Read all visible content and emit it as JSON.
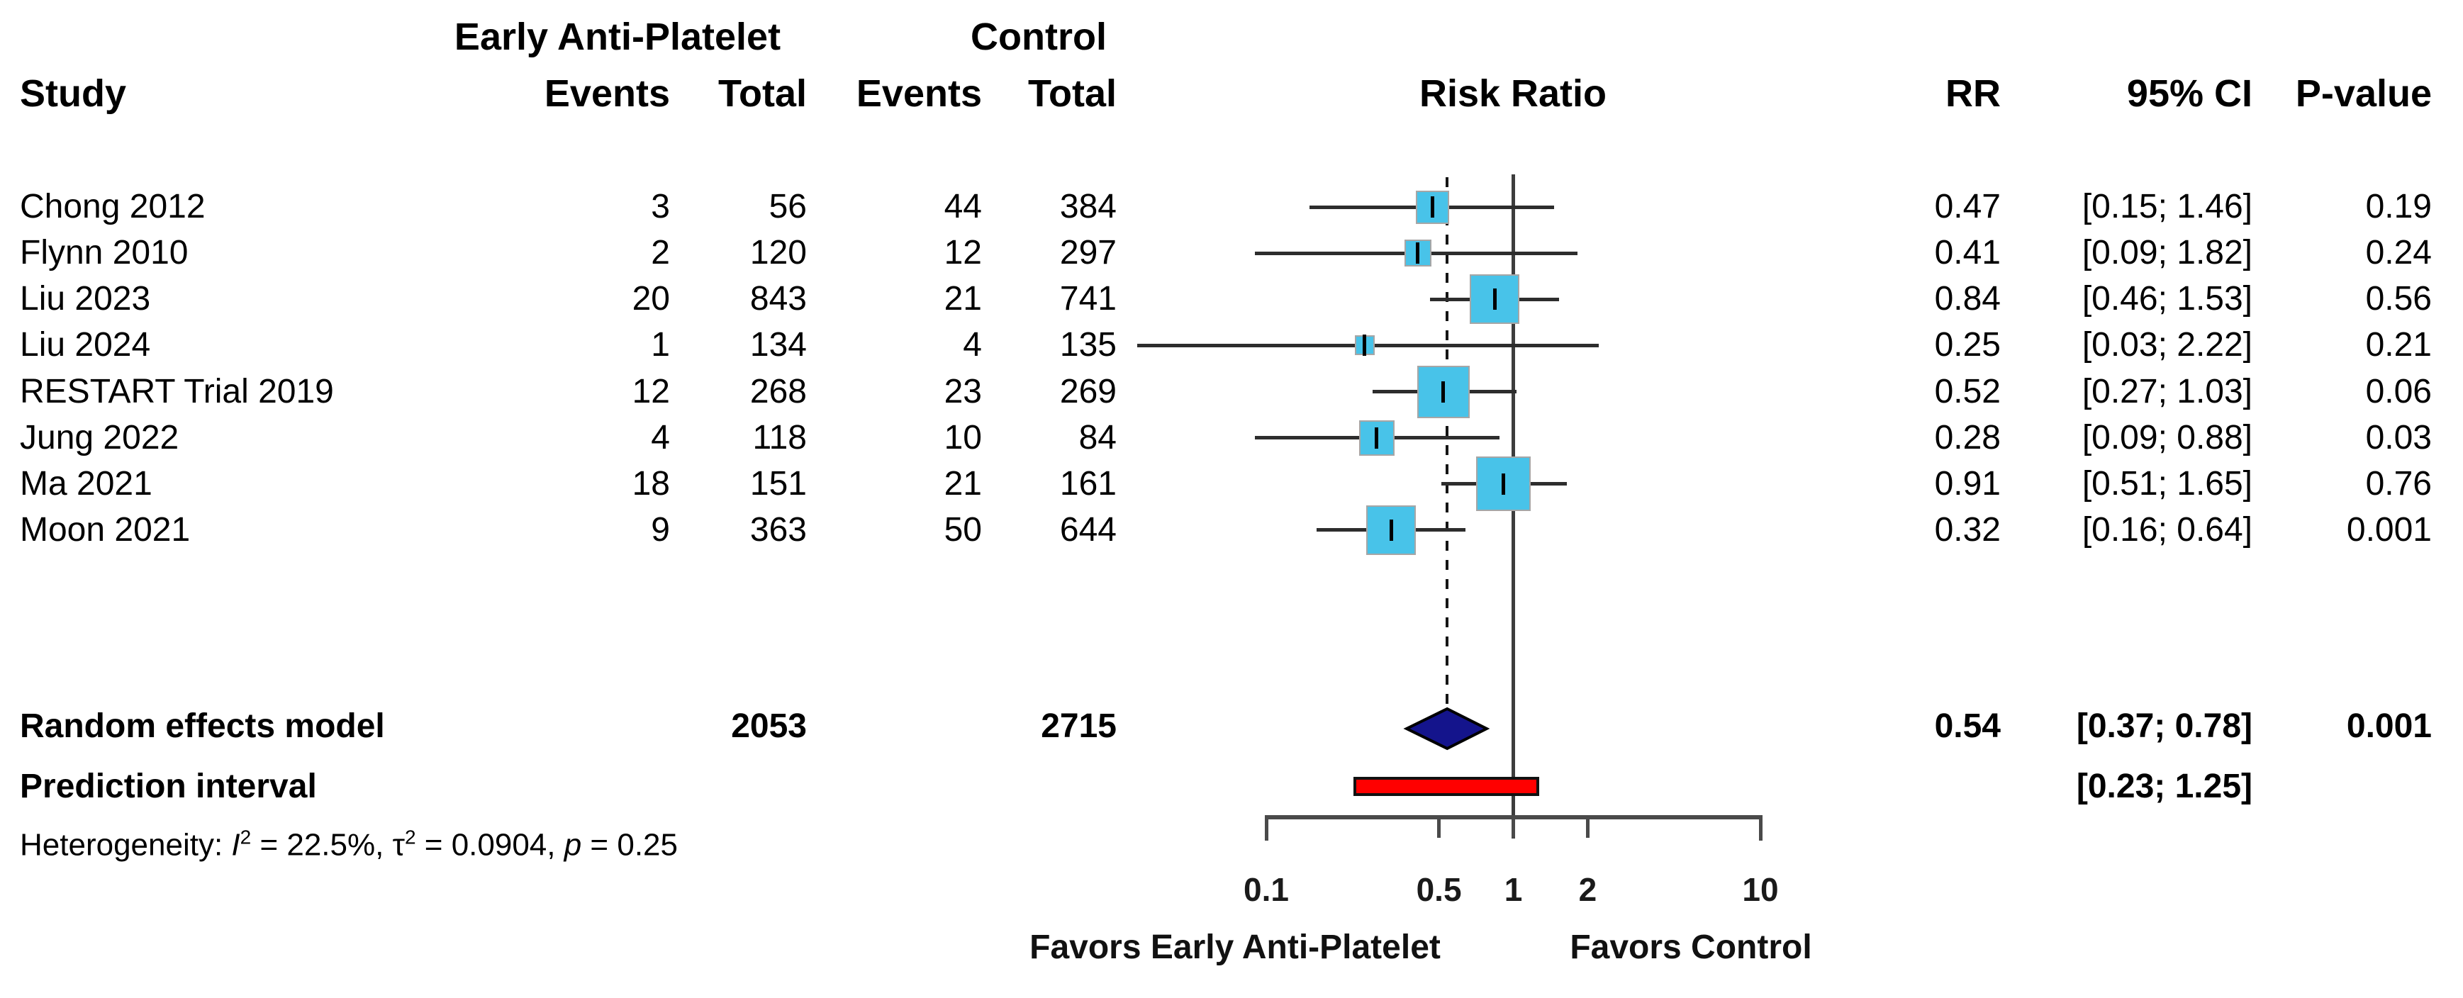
{
  "header": {
    "group1": "Early Anti-Platelet",
    "group2": "Control",
    "study": "Study",
    "events1": "Events",
    "total1": "Total",
    "events2": "Events",
    "total2": "Total",
    "risk_ratio": "Risk Ratio",
    "rr": "RR",
    "ci": "95% CI",
    "pvalue": "P-value"
  },
  "studies": [
    {
      "name": "Chong 2012",
      "events1": "3",
      "total1": "56",
      "events2": "44",
      "total2": "384",
      "rr": "0.47",
      "ci": "[0.15; 1.46]",
      "p": "0.19",
      "est": 0.47,
      "lo": 0.15,
      "hi": 1.46,
      "sq": 47
    },
    {
      "name": "Flynn 2010",
      "events1": "2",
      "total1": "120",
      "events2": "12",
      "total2": "297",
      "rr": "0.41",
      "ci": "[0.09; 1.82]",
      "p": "0.24",
      "est": 0.41,
      "lo": 0.09,
      "hi": 1.82,
      "sq": 38
    },
    {
      "name": "Liu 2023",
      "events1": "20",
      "total1": "843",
      "events2": "21",
      "total2": "741",
      "rr": "0.84",
      "ci": "[0.46; 1.53]",
      "p": "0.56",
      "est": 0.84,
      "lo": 0.46,
      "hi": 1.53,
      "sq": 70
    },
    {
      "name": "Liu 2024",
      "events1": "1",
      "total1": "134",
      "events2": "4",
      "total2": "135",
      "rr": "0.25",
      "ci": "[0.03; 2.22]",
      "p": "0.21",
      "est": 0.25,
      "lo": 0.03,
      "hi": 2.22,
      "sq": 28
    },
    {
      "name": "RESTART Trial 2019",
      "events1": "12",
      "total1": "268",
      "events2": "23",
      "total2": "269",
      "rr": "0.52",
      "ci": "[0.27; 1.03]",
      "p": "0.06",
      "est": 0.52,
      "lo": 0.27,
      "hi": 1.03,
      "sq": 74
    },
    {
      "name": "Jung 2022",
      "events1": "4",
      "total1": "118",
      "events2": "10",
      "total2": "84",
      "rr": "0.28",
      "ci": "[0.09; 0.88]",
      "p": "0.03",
      "est": 0.28,
      "lo": 0.09,
      "hi": 0.88,
      "sq": 50
    },
    {
      "name": "Ma 2021",
      "events1": "18",
      "total1": "151",
      "events2": "21",
      "total2": "161",
      "rr": "0.91",
      "ci": "[0.51; 1.65]",
      "p": "0.76",
      "est": 0.91,
      "lo": 0.51,
      "hi": 1.65,
      "sq": 77
    },
    {
      "name": "Moon 2021",
      "events1": "9",
      "total1": "363",
      "events2": "50",
      "total2": "644",
      "rr": "0.32",
      "ci": "[0.16; 0.64]",
      "p": "0.001",
      "est": 0.32,
      "lo": 0.16,
      "hi": 0.64,
      "sq": 70
    }
  ],
  "summary": {
    "label": "Random effects model",
    "total1": "2053",
    "total2": "2715",
    "rr": "0.54",
    "ci": "[0.37; 0.78]",
    "p": "0.001",
    "est": 0.54,
    "lo": 0.37,
    "hi": 0.78
  },
  "prediction": {
    "label": "Prediction interval",
    "ci": "[0.23; 1.25]",
    "lo": 0.23,
    "hi": 1.25
  },
  "heterogeneity": {
    "prefix": "Heterogeneity: ",
    "i_sym": "I",
    "i_sup": "2",
    "i_val": " = 22.5%, ",
    "tau_sym": "τ",
    "tau_sup": "2",
    "tau_val": " = 0.0904, ",
    "p_sym": "p",
    "p_val": " = 0.25"
  },
  "axis": {
    "tick_labels": [
      "0.1",
      "0.5",
      "1",
      "2",
      "10"
    ],
    "tick_values": [
      0.1,
      0.5,
      1,
      2,
      10
    ],
    "favors_left": "Favors Early Anti-Platelet",
    "favors_right": "Favors Control"
  },
  "colors": {
    "square": "#48C3E9",
    "diamond": "#14148C",
    "prediction_bar": "#FF0000",
    "ci_line": "#2d2d2d",
    "axis": "#4a4a4a"
  },
  "chart_data": {
    "type": "forest",
    "effect_measure": "Risk Ratio",
    "x_scale": "log10",
    "x_ticks": [
      0.1,
      0.5,
      1,
      2,
      10
    ],
    "reference_line": 1,
    "pooled_estimate_line": 0.54,
    "studies": [
      {
        "study": "Chong 2012",
        "eap_events": 3,
        "eap_total": 56,
        "ctrl_events": 44,
        "ctrl_total": 384,
        "rr": 0.47,
        "ci_low": 0.15,
        "ci_high": 1.46,
        "p": 0.19
      },
      {
        "study": "Flynn 2010",
        "eap_events": 2,
        "eap_total": 120,
        "ctrl_events": 12,
        "ctrl_total": 297,
        "rr": 0.41,
        "ci_low": 0.09,
        "ci_high": 1.82,
        "p": 0.24
      },
      {
        "study": "Liu 2023",
        "eap_events": 20,
        "eap_total": 843,
        "ctrl_events": 21,
        "ctrl_total": 741,
        "rr": 0.84,
        "ci_low": 0.46,
        "ci_high": 1.53,
        "p": 0.56
      },
      {
        "study": "Liu 2024",
        "eap_events": 1,
        "eap_total": 134,
        "ctrl_events": 4,
        "ctrl_total": 135,
        "rr": 0.25,
        "ci_low": 0.03,
        "ci_high": 2.22,
        "p": 0.21
      },
      {
        "study": "RESTART Trial 2019",
        "eap_events": 12,
        "eap_total": 268,
        "ctrl_events": 23,
        "ctrl_total": 269,
        "rr": 0.52,
        "ci_low": 0.27,
        "ci_high": 1.03,
        "p": 0.06
      },
      {
        "study": "Jung 2022",
        "eap_events": 4,
        "eap_total": 118,
        "ctrl_events": 10,
        "ctrl_total": 84,
        "rr": 0.28,
        "ci_low": 0.09,
        "ci_high": 0.88,
        "p": 0.03
      },
      {
        "study": "Ma 2021",
        "eap_events": 18,
        "eap_total": 151,
        "ctrl_events": 21,
        "ctrl_total": 161,
        "rr": 0.91,
        "ci_low": 0.51,
        "ci_high": 1.65,
        "p": 0.76
      },
      {
        "study": "Moon 2021",
        "eap_events": 9,
        "eap_total": 363,
        "ctrl_events": 50,
        "ctrl_total": 644,
        "rr": 0.32,
        "ci_low": 0.16,
        "ci_high": 0.64,
        "p": 0.001
      }
    ],
    "summary": {
      "model": "Random effects model",
      "eap_total": 2053,
      "ctrl_total": 2715,
      "rr": 0.54,
      "ci_low": 0.37,
      "ci_high": 0.78,
      "p": 0.001
    },
    "prediction_interval": {
      "ci_low": 0.23,
      "ci_high": 1.25
    },
    "heterogeneity": {
      "I2_pct": 22.5,
      "tau2": 0.0904,
      "p": 0.25
    },
    "x_axis_annotations": {
      "left": "Favors Early Anti-Platelet",
      "right": "Favors Control"
    }
  }
}
